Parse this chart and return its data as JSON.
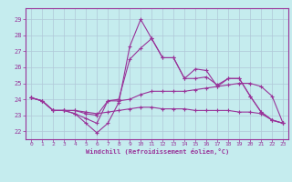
{
  "title": "",
  "xlabel": "Windchill (Refroidissement éolien,°C)",
  "ylabel": "",
  "xlim": [
    -0.5,
    23.5
  ],
  "ylim": [
    21.5,
    29.7
  ],
  "xticks": [
    0,
    1,
    2,
    3,
    4,
    5,
    6,
    7,
    8,
    9,
    10,
    11,
    12,
    13,
    14,
    15,
    16,
    17,
    18,
    19,
    20,
    21,
    22,
    23
  ],
  "yticks": [
    22,
    23,
    24,
    25,
    26,
    27,
    28,
    29
  ],
  "bg_color": "#c5ecee",
  "line_color": "#993399",
  "grid_color": "#b0c8d8",
  "lines": [
    [
      24.1,
      23.9,
      23.3,
      23.3,
      23.1,
      22.5,
      21.9,
      22.5,
      23.8,
      27.3,
      29.0,
      27.8,
      26.6,
      26.6,
      25.3,
      25.9,
      25.8,
      24.8,
      25.3,
      25.3,
      24.2,
      23.2,
      22.7,
      22.5
    ],
    [
      24.1,
      23.9,
      23.3,
      23.3,
      23.1,
      22.8,
      22.5,
      23.9,
      24.0,
      26.5,
      27.2,
      27.8,
      26.6,
      26.6,
      25.3,
      25.3,
      25.4,
      24.9,
      25.3,
      25.3,
      24.2,
      23.2,
      22.7,
      22.5
    ],
    [
      24.1,
      23.9,
      23.3,
      23.3,
      23.3,
      23.1,
      23.0,
      23.9,
      23.9,
      24.0,
      24.3,
      24.5,
      24.5,
      24.5,
      24.5,
      24.6,
      24.7,
      24.8,
      24.9,
      25.0,
      25.0,
      24.8,
      24.2,
      22.5
    ],
    [
      24.1,
      23.9,
      23.3,
      23.3,
      23.3,
      23.2,
      23.1,
      23.2,
      23.3,
      23.4,
      23.5,
      23.5,
      23.4,
      23.4,
      23.4,
      23.3,
      23.3,
      23.3,
      23.3,
      23.2,
      23.2,
      23.1,
      22.7,
      22.5
    ]
  ],
  "marker": "+",
  "markersize": 3,
  "linewidth": 0.8
}
